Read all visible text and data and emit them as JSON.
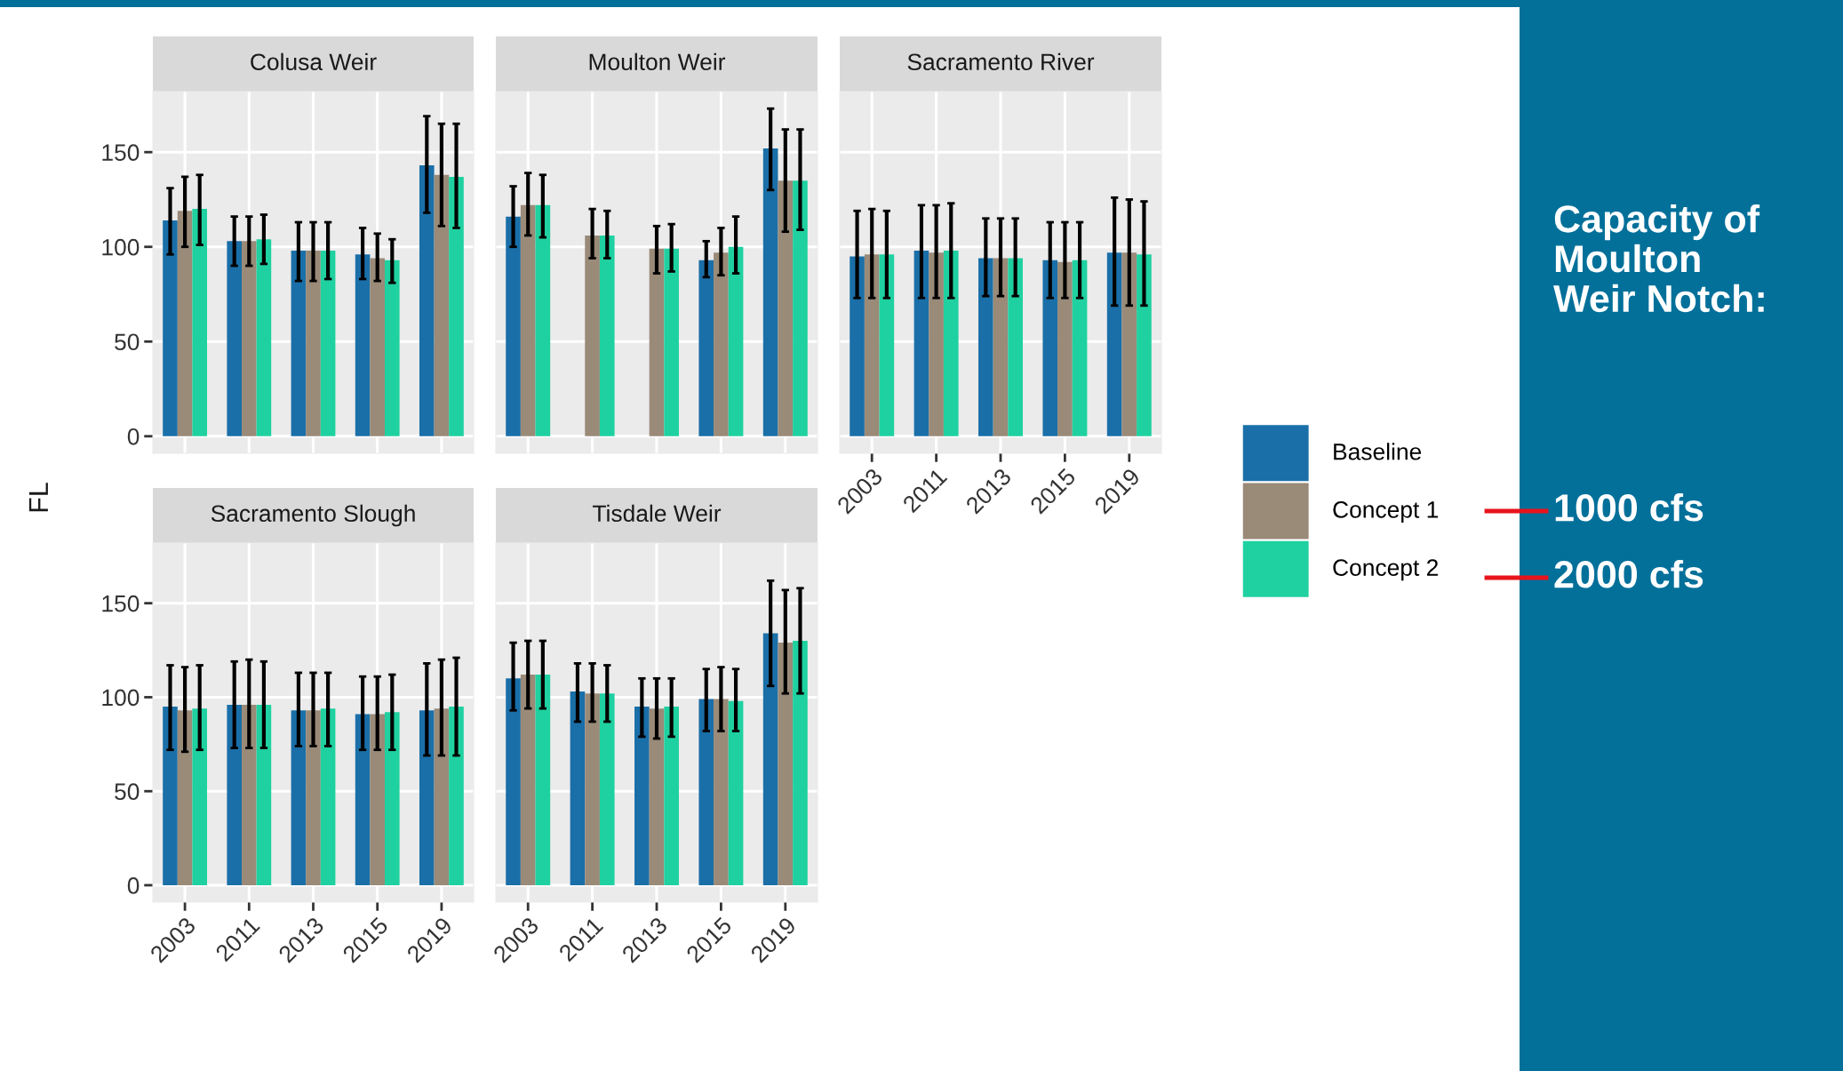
{
  "chart_data": [
    {
      "type": "bar",
      "title": "Colusa Weir",
      "ylabel": "FL",
      "categories": [
        "2003",
        "2011",
        "2013",
        "2015",
        "2019"
      ],
      "ylim": [
        -9,
        182
      ],
      "yticks": [
        0,
        50,
        100,
        150
      ],
      "grid": true,
      "tick_labels": "y",
      "legend": "right",
      "annotations": [
        "Capacity of\nMoulton\nWeir Notch:",
        "1000 cfs",
        "2000 cfs"
      ],
      "series": [
        {
          "name": "Baseline",
          "color": "#1a6fa8",
          "values": [
            114,
            103,
            98,
            96,
            143
          ],
          "errors": [
            [
              96,
              131
            ],
            [
              90,
              116
            ],
            [
              82,
              113
            ],
            [
              83,
              110
            ],
            [
              118,
              169
            ]
          ]
        },
        {
          "name": "Concept 1",
          "color": "#9a8a78",
          "values": [
            119,
            103,
            98,
            94,
            138
          ],
          "errors": [
            [
              100,
              137
            ],
            [
              90,
              116
            ],
            [
              82,
              113
            ],
            [
              82,
              107
            ],
            [
              111,
              165
            ]
          ]
        },
        {
          "name": "Concept 2",
          "color": "#1fd1a0",
          "values": [
            120,
            104,
            98,
            93,
            137
          ],
          "errors": [
            [
              101,
              138
            ],
            [
              91,
              117
            ],
            [
              83,
              113
            ],
            [
              81,
              104
            ],
            [
              110,
              165
            ]
          ]
        }
      ]
    },
    {
      "type": "bar",
      "title": "Moulton Weir",
      "categories": [
        "2003",
        "2011",
        "2013",
        "2015",
        "2019"
      ],
      "ylim": [
        -9,
        182
      ],
      "yticks": [
        0,
        50,
        100,
        150
      ],
      "grid": true,
      "tick_labels": false,
      "series": [
        {
          "color": "#1a6fa8",
          "values": [
            116,
            null,
            null,
            93,
            152
          ],
          "errors": [
            [
              100,
              132
            ],
            null,
            null,
            [
              84,
              103
            ],
            [
              130,
              173
            ]
          ]
        },
        {
          "color": "#9a8a78",
          "values": [
            122,
            106,
            99,
            97,
            135
          ],
          "errors": [
            [
              106,
              139
            ],
            [
              94,
              120
            ],
            [
              86,
              111
            ],
            [
              85,
              110
            ],
            [
              108,
              162
            ]
          ]
        },
        {
          "color": "#1fd1a0",
          "values": [
            122,
            106,
            99,
            100,
            135
          ],
          "errors": [
            [
              105,
              138
            ],
            [
              94,
              119
            ],
            [
              87,
              112
            ],
            [
              86,
              116
            ],
            [
              109,
              162
            ]
          ]
        }
      ]
    },
    {
      "type": "bar",
      "title": "Sacramento River",
      "categories": [
        "2003",
        "2011",
        "2013",
        "2015",
        "2019"
      ],
      "ylim": [
        -9,
        182
      ],
      "yticks": [
        0,
        50,
        100,
        150
      ],
      "grid": true,
      "tick_labels": "x",
      "series": [
        {
          "color": "#1a6fa8",
          "values": [
            95,
            98,
            94,
            93,
            97
          ],
          "errors": [
            [
              73,
              119
            ],
            [
              73,
              122
            ],
            [
              74,
              115
            ],
            [
              73,
              113
            ],
            [
              69,
              126
            ]
          ]
        },
        {
          "color": "#9a8a78",
          "values": [
            96,
            97,
            94,
            92,
            97
          ],
          "errors": [
            [
              73,
              120
            ],
            [
              73,
              122
            ],
            [
              74,
              115
            ],
            [
              73,
              113
            ],
            [
              69,
              125
            ]
          ]
        },
        {
          "color": "#1fd1a0",
          "values": [
            96,
            98,
            94,
            93,
            96
          ],
          "errors": [
            [
              73,
              119
            ],
            [
              73,
              123
            ],
            [
              74,
              115
            ],
            [
              73,
              113
            ],
            [
              69,
              124
            ]
          ]
        }
      ]
    },
    {
      "type": "bar",
      "title": "Sacramento Slough",
      "categories": [
        "2003",
        "2011",
        "2013",
        "2015",
        "2019"
      ],
      "ylim": [
        -9,
        182
      ],
      "yticks": [
        0,
        50,
        100,
        150
      ],
      "grid": true,
      "series": [
        {
          "color": "#1a6fa8",
          "values": [
            95,
            96,
            93,
            91,
            93
          ],
          "errors": [
            [
              72,
              117
            ],
            [
              73,
              119
            ],
            [
              74,
              113
            ],
            [
              72,
              111
            ],
            [
              69,
              118
            ]
          ]
        },
        {
          "color": "#9a8a78",
          "values": [
            93,
            96,
            93,
            91,
            94
          ],
          "errors": [
            [
              71,
              116
            ],
            [
              73,
              120
            ],
            [
              74,
              113
            ],
            [
              72,
              111
            ],
            [
              69,
              120
            ]
          ]
        },
        {
          "color": "#1fd1a0",
          "values": [
            94,
            96,
            94,
            92,
            95
          ],
          "errors": [
            [
              72,
              117
            ],
            [
              73,
              119
            ],
            [
              74,
              113
            ],
            [
              72,
              112
            ],
            [
              69,
              121
            ]
          ]
        }
      ]
    },
    {
      "type": "bar",
      "title": "Tisdale Weir",
      "categories": [
        "2003",
        "2011",
        "2013",
        "2015",
        "2019"
      ],
      "ylim": [
        -9,
        182
      ],
      "yticks": [
        0,
        50,
        100,
        150
      ],
      "grid": true,
      "tick_labels": "x",
      "series": [
        {
          "color": "#1a6fa8",
          "values": [
            110,
            103,
            95,
            99,
            134
          ],
          "errors": [
            [
              93,
              129
            ],
            [
              87,
              118
            ],
            [
              79,
              110
            ],
            [
              82,
              115
            ],
            [
              106,
              162
            ]
          ]
        },
        {
          "color": "#9a8a78",
          "values": [
            112,
            102,
            94,
            99,
            129
          ],
          "errors": [
            [
              94,
              130
            ],
            [
              87,
              118
            ],
            [
              78,
              110
            ],
            [
              82,
              116
            ],
            [
              102,
              157
            ]
          ]
        },
        {
          "color": "#1fd1a0",
          "values": [
            112,
            102,
            95,
            98,
            130
          ],
          "errors": [
            [
              94,
              130
            ],
            [
              87,
              117
            ],
            [
              79,
              110
            ],
            [
              82,
              115
            ],
            [
              102,
              158
            ]
          ]
        }
      ]
    }
  ]
}
